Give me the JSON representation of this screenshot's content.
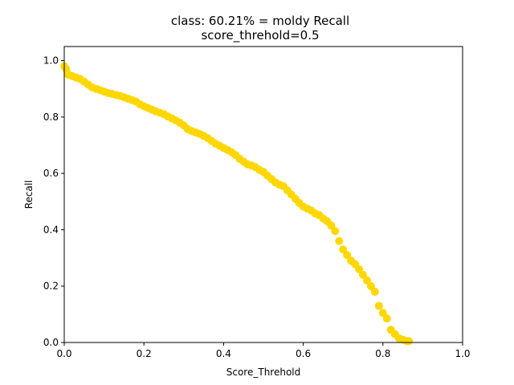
{
  "chart_data": {
    "type": "scatter",
    "title": "class: 60.21% = moldy Recall",
    "subtitle": "score_threhold=0.5",
    "xlabel": "Score_Threhold",
    "ylabel": "Recall",
    "xlim": [
      0,
      1
    ],
    "ylim": [
      0,
      1.05
    ],
    "xticks": [
      "0.0",
      "0.2",
      "0.4",
      "0.6",
      "0.8",
      "1.0"
    ],
    "yticks": [
      "0.0",
      "0.2",
      "0.4",
      "0.6",
      "0.8",
      "1.0"
    ],
    "grid": false,
    "legend": "none",
    "marker_color": "#FFD700",
    "series": [
      {
        "x": [
          0.0,
          0.005,
          0.01,
          0.02,
          0.03,
          0.04,
          0.05,
          0.06,
          0.07,
          0.08,
          0.09,
          0.1,
          0.11,
          0.12,
          0.13,
          0.14,
          0.15,
          0.16,
          0.17,
          0.18,
          0.19,
          0.2,
          0.21,
          0.22,
          0.23,
          0.24,
          0.25,
          0.26,
          0.27,
          0.28,
          0.29,
          0.3,
          0.31,
          0.32,
          0.33,
          0.34,
          0.35,
          0.36,
          0.37,
          0.38,
          0.39,
          0.4,
          0.41,
          0.42,
          0.43,
          0.44,
          0.45,
          0.46,
          0.47,
          0.48,
          0.49,
          0.5,
          0.51,
          0.52,
          0.53,
          0.54,
          0.55,
          0.56,
          0.57,
          0.58,
          0.59,
          0.6,
          0.61,
          0.62,
          0.63,
          0.64,
          0.65,
          0.66,
          0.67,
          0.68,
          0.69,
          0.7,
          0.71,
          0.72,
          0.73,
          0.74,
          0.75,
          0.76,
          0.77,
          0.78,
          0.79,
          0.8,
          0.81,
          0.82,
          0.83,
          0.84,
          0.85,
          0.86,
          0.865
        ],
        "y": [
          0.98,
          0.97,
          0.95,
          0.945,
          0.94,
          0.935,
          0.925,
          0.915,
          0.905,
          0.9,
          0.895,
          0.89,
          0.885,
          0.882,
          0.878,
          0.875,
          0.87,
          0.865,
          0.86,
          0.855,
          0.845,
          0.838,
          0.832,
          0.826,
          0.82,
          0.815,
          0.81,
          0.802,
          0.795,
          0.788,
          0.78,
          0.77,
          0.757,
          0.75,
          0.745,
          0.74,
          0.733,
          0.725,
          0.715,
          0.705,
          0.698,
          0.69,
          0.683,
          0.675,
          0.665,
          0.652,
          0.642,
          0.632,
          0.628,
          0.622,
          0.612,
          0.605,
          0.592,
          0.58,
          0.568,
          0.56,
          0.555,
          0.54,
          0.525,
          0.51,
          0.495,
          0.482,
          0.475,
          0.468,
          0.458,
          0.452,
          0.44,
          0.43,
          0.415,
          0.395,
          0.36,
          0.33,
          0.31,
          0.29,
          0.278,
          0.26,
          0.24,
          0.22,
          0.2,
          0.18,
          0.13,
          0.105,
          0.085,
          0.045,
          0.03,
          0.015,
          0.01,
          0.005,
          0.005
        ]
      }
    ]
  }
}
